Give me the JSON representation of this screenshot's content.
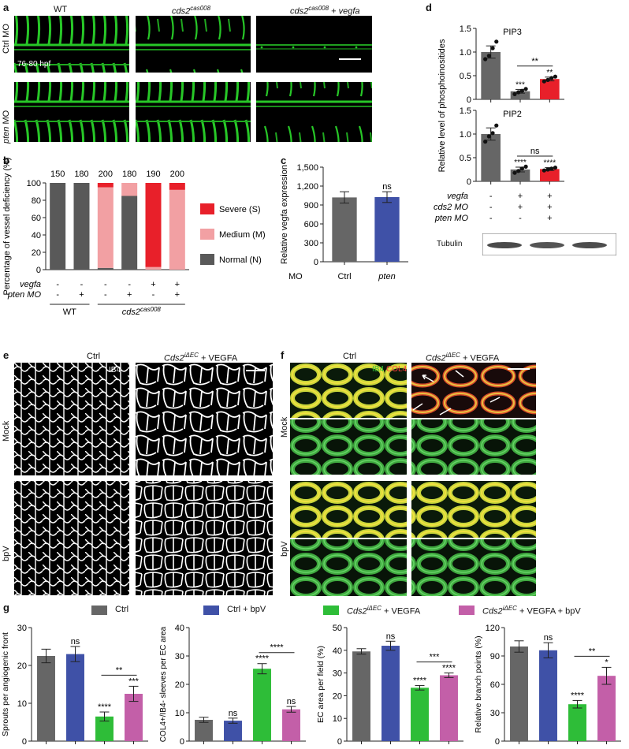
{
  "panel_labels": {
    "a": "a",
    "b": "b",
    "c": "c",
    "d": "d",
    "e": "e",
    "f": "f",
    "g": "g"
  },
  "panel_a": {
    "col_labels": [
      "WT",
      "cds2",
      "cas008",
      "cds2",
      "cas008",
      " + ",
      "vegfa"
    ],
    "row_labels": [
      "Ctrl MO",
      "pten",
      "MO"
    ],
    "stage": "76-80 hpf"
  },
  "panel_e": {
    "col_labels": [
      "Ctrl",
      "Cds2",
      "iΔEC",
      " + VEGFA"
    ],
    "row_labels": [
      "Mock",
      "bpV"
    ],
    "stain": "IB4"
  },
  "panel_f": {
    "col_labels": [
      "Ctrl",
      "Cds2",
      "iΔEC",
      " + VEGFA"
    ],
    "row_labels": [
      "Mock",
      "bpV"
    ],
    "stain1": "IB4",
    "stain2": "COL4"
  },
  "panel_d_extra": {
    "tubulin": "Tubulin"
  },
  "legend_g": [
    "Ctrl",
    "Ctrl + bpV",
    "Cds2",
    "iΔEC",
    " + VEGFA",
    "Cds2",
    "iΔEC",
    " + VEGFA + bpV"
  ],
  "chart_data": [
    {
      "id": "b",
      "type": "bar",
      "ylabel": "Percentage of vessel deficiency (%)",
      "ylim": [
        0,
        100
      ],
      "yticks": [
        "0",
        "20",
        "40",
        "60",
        "80",
        "100"
      ],
      "totals": [
        "150",
        "180",
        "200",
        "180",
        "190",
        "200"
      ],
      "series": [
        {
          "name": "Normal (N)",
          "color": "#595959",
          "values": [
            100,
            100,
            2,
            85,
            0,
            0
          ]
        },
        {
          "name": "Medium (M)",
          "color": "#f2a0a3",
          "values": [
            0,
            0,
            93,
            15,
            3,
            92
          ]
        },
        {
          "name": "Severe (S)",
          "color": "#e8202a",
          "values": [
            0,
            0,
            5,
            0,
            97,
            8
          ]
        }
      ],
      "row_labels": [
        "vegfa",
        "pten MO"
      ],
      "rows": [
        [
          "-",
          "-",
          "-",
          "-",
          "+",
          "+"
        ],
        [
          "-",
          "+",
          "-",
          "+",
          "-",
          "+"
        ]
      ],
      "group_labels": [
        "WT",
        "cds2",
        "cas008"
      ]
    },
    {
      "id": "c",
      "type": "bar",
      "ylabel": "Relative vegfa expression",
      "ylim": [
        0,
        1500
      ],
      "yticks": [
        "0",
        "300",
        "600",
        "900",
        "1,200",
        "1,500"
      ],
      "xlabel": "MO",
      "categories": [
        "Ctrl",
        "pten"
      ],
      "values": [
        1020,
        1025
      ],
      "errors": [
        90,
        85
      ],
      "colors": [
        "#666666",
        "#3f51a7"
      ],
      "sig": [
        "",
        "ns"
      ]
    },
    {
      "id": "d1",
      "type": "bar",
      "title": "PIP3",
      "ylim": [
        0,
        1.5
      ],
      "yticks": [
        "0",
        "0.5",
        "1.0",
        "1.5"
      ],
      "values": [
        1.0,
        0.17,
        0.43
      ],
      "errors": [
        0.13,
        0.04,
        0.04
      ],
      "colors": [
        "#666666",
        "#666666",
        "#e8202a"
      ],
      "points": [
        [
          0.85,
          0.92,
          1.08,
          1.22
        ],
        [
          0.11,
          0.15,
          0.18,
          0.22
        ],
        [
          0.38,
          0.41,
          0.45,
          0.48
        ]
      ],
      "sig": [
        "",
        "***",
        "**"
      ],
      "bracket": "**"
    },
    {
      "id": "d2",
      "type": "bar",
      "title": "PIP2",
      "ylabel": "Relative level of phosphoinositides",
      "ylim": [
        0,
        1.5
      ],
      "yticks": [
        "0",
        "0.5",
        "1.0",
        "1.5"
      ],
      "values": [
        1.0,
        0.25,
        0.26
      ],
      "errors": [
        0.13,
        0.05,
        0.03
      ],
      "colors": [
        "#666666",
        "#666666",
        "#e8202a"
      ],
      "points": [
        [
          0.84,
          0.95,
          1.02,
          1.18
        ],
        [
          0.18,
          0.22,
          0.27,
          0.31
        ],
        [
          0.23,
          0.25,
          0.27,
          0.29
        ]
      ],
      "sig": [
        "",
        "****",
        "****"
      ],
      "bracket": "ns",
      "row_labels": [
        "vegfa",
        "cds2 MO",
        "pten MO"
      ],
      "rows": [
        [
          "-",
          "+",
          "+"
        ],
        [
          "-",
          "+",
          "+"
        ],
        [
          "-",
          "-",
          "+"
        ]
      ]
    },
    {
      "id": "g1",
      "type": "bar",
      "ylabel": "Sprouts per angiogenic front",
      "ylim": [
        0,
        30
      ],
      "yticks": [
        "0",
        "10",
        "20",
        "30"
      ],
      "values": [
        22.5,
        23.0,
        6.5,
        12.5
      ],
      "errors": [
        1.8,
        2.0,
        1.2,
        2.0
      ],
      "colors": [
        "#666666",
        "#3f51a7",
        "#2ebd38",
        "#c35fa8"
      ],
      "sig": [
        "",
        "ns",
        "****",
        "***"
      ],
      "bracket": "**"
    },
    {
      "id": "g2",
      "type": "bar",
      "ylabel": "COL4+/IB4- sleeves per EC area",
      "ylim": [
        0,
        40
      ],
      "yticks": [
        "0",
        "10",
        "20",
        "30",
        "40"
      ],
      "values": [
        7.5,
        7.2,
        25.5,
        11.2
      ],
      "errors": [
        0.9,
        0.9,
        1.8,
        1.0
      ],
      "colors": [
        "#666666",
        "#3f51a7",
        "#2ebd38",
        "#c35fa8"
      ],
      "sig": [
        "",
        "ns",
        "****",
        "ns"
      ],
      "bracket": "****"
    },
    {
      "id": "g3",
      "type": "bar",
      "ylabel": "EC area per field (%)",
      "ylim": [
        0,
        50
      ],
      "yticks": [
        "0",
        "10",
        "20",
        "30",
        "40",
        "50"
      ],
      "values": [
        39.5,
        42.0,
        23.5,
        29.0
      ],
      "errors": [
        1.2,
        2.0,
        1.0,
        1.0
      ],
      "colors": [
        "#666666",
        "#3f51a7",
        "#2ebd38",
        "#c35fa8"
      ],
      "sig": [
        "",
        "ns",
        "****",
        "****"
      ],
      "bracket": "***"
    },
    {
      "id": "g4",
      "type": "bar",
      "ylabel": "Relative branch points (%)",
      "ylim": [
        0,
        120
      ],
      "yticks": [
        "0",
        "30",
        "60",
        "90",
        "120"
      ],
      "values": [
        100,
        96,
        39,
        69
      ],
      "errors": [
        6,
        8,
        4,
        9
      ],
      "colors": [
        "#666666",
        "#3f51a7",
        "#2ebd38",
        "#c35fa8"
      ],
      "sig": [
        "",
        "ns",
        "****",
        "*"
      ],
      "bracket": "**"
    }
  ]
}
